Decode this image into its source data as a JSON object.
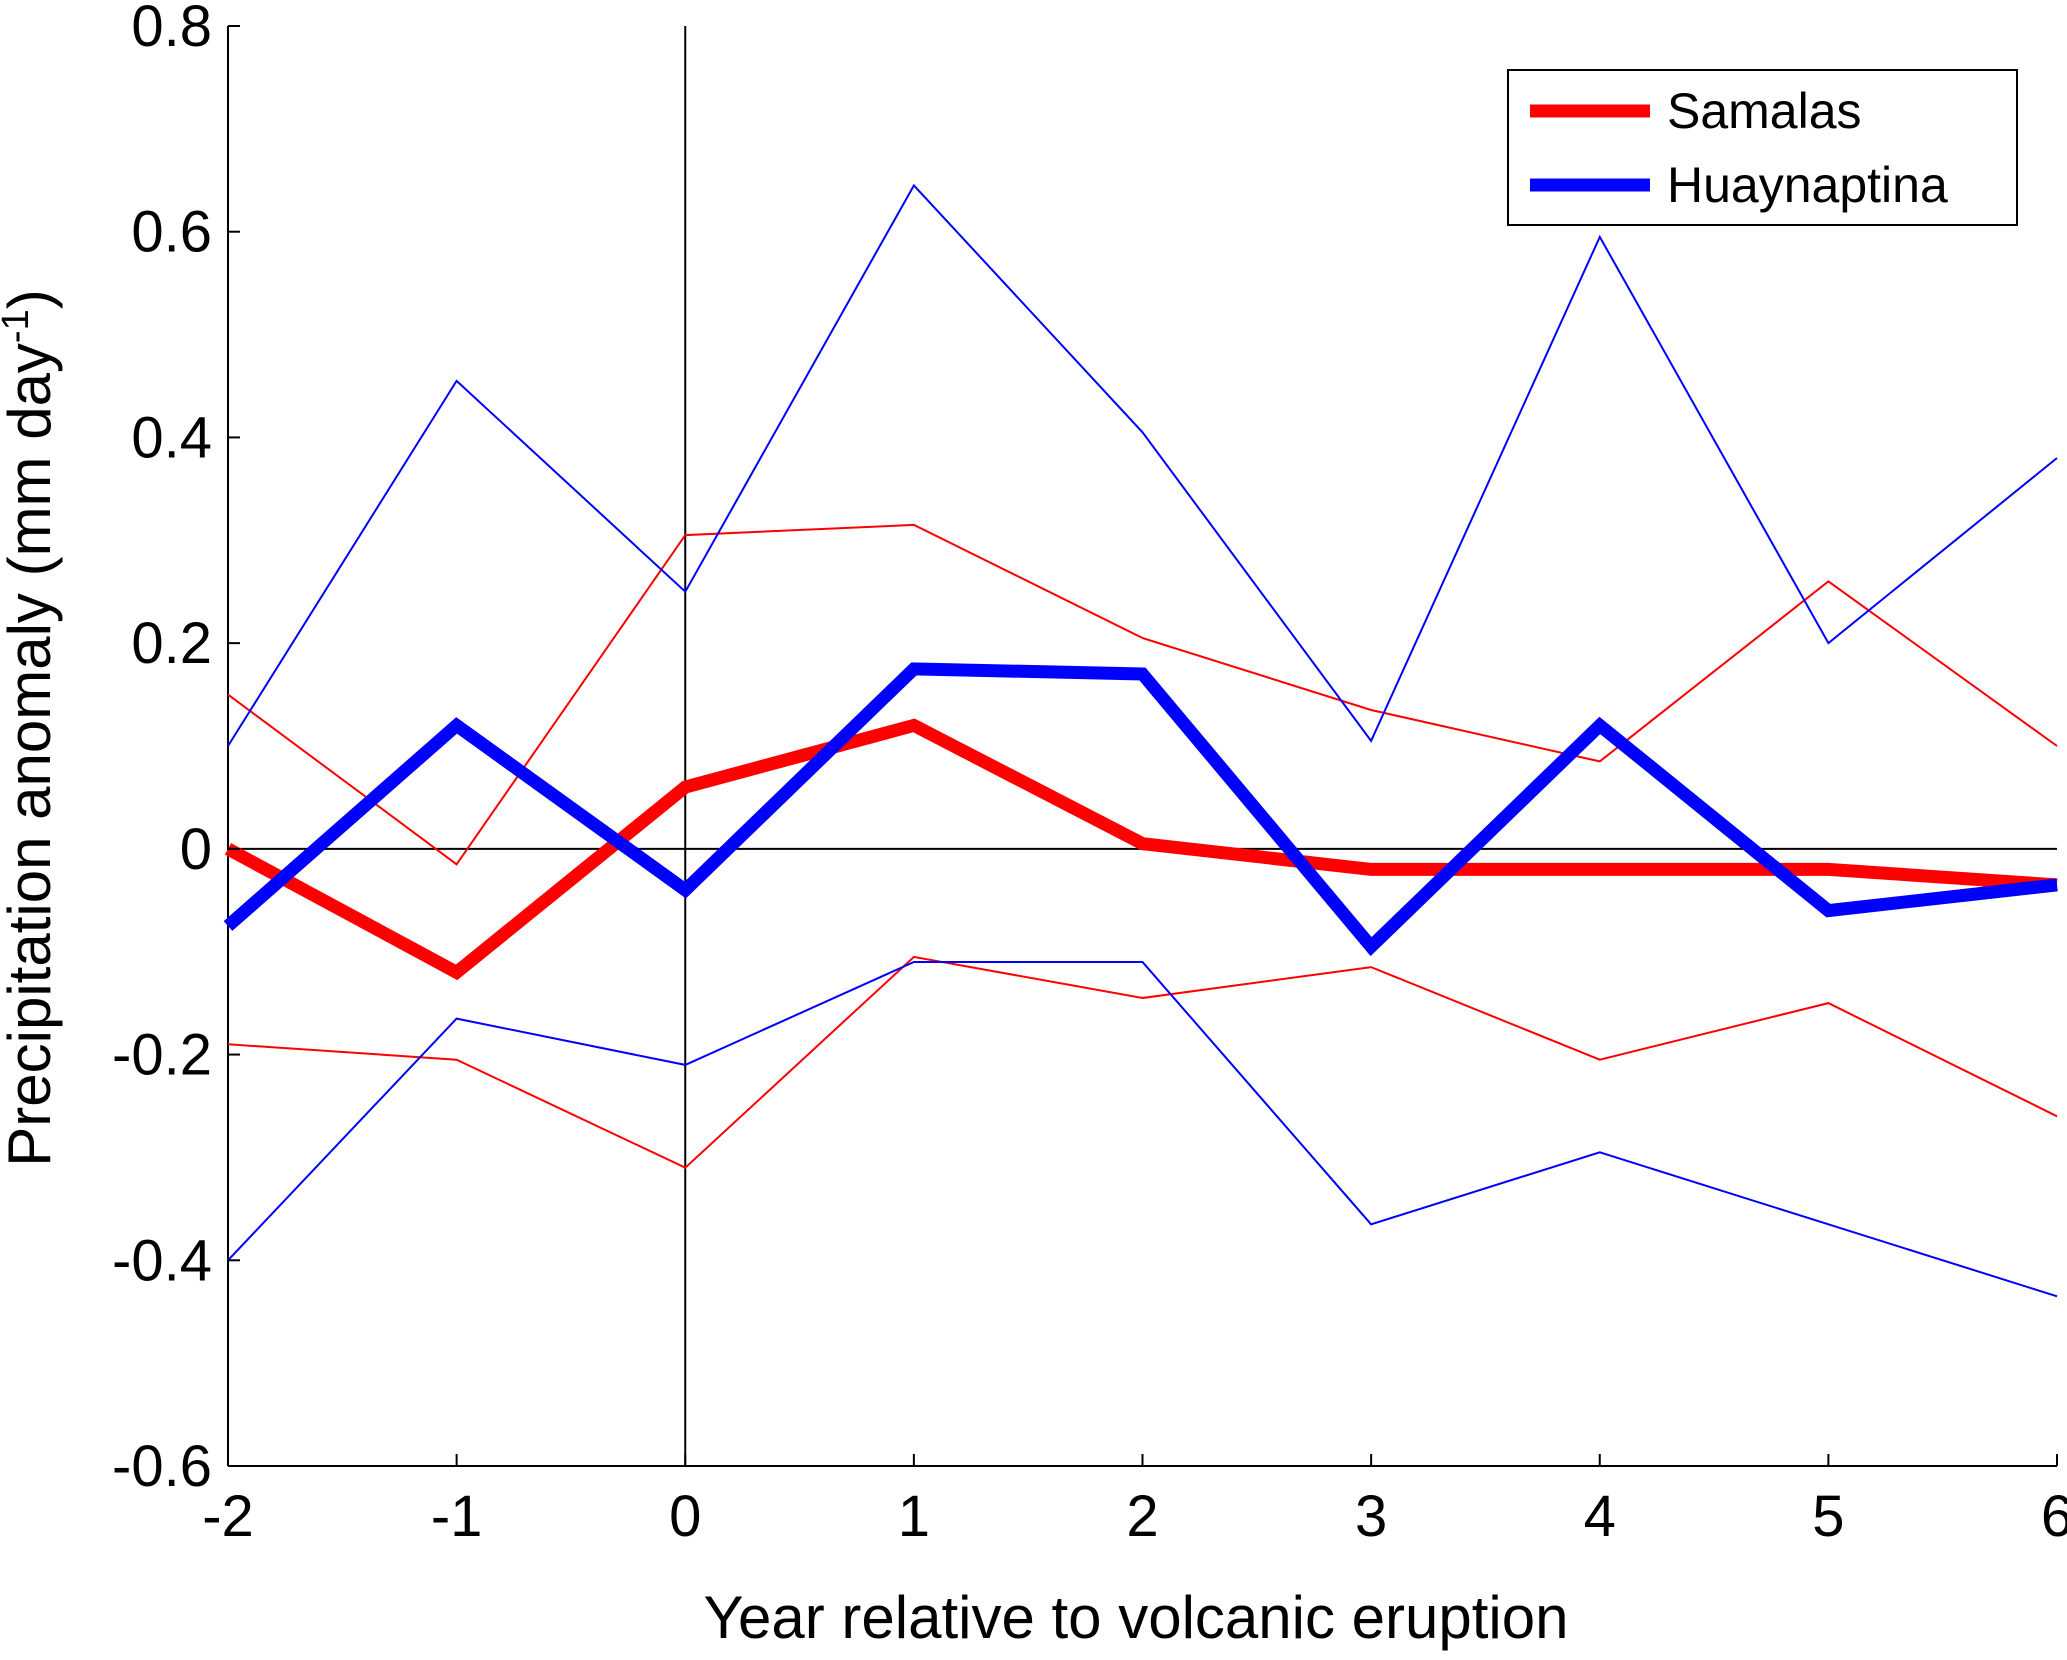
{
  "chart_data": {
    "type": "line",
    "title": "",
    "xlabel": "Year relative to volcanic eruption",
    "ylabel": "Precipitation anomaly (mm day",
    "ylabel_superscript": "-1",
    "ylabel_close": ")",
    "x": [
      -2,
      -1,
      0,
      1,
      2,
      3,
      4,
      5,
      6
    ],
    "xlim": [
      -2,
      6
    ],
    "ylim": [
      -0.6,
      0.8
    ],
    "xticks": [
      -2,
      -1,
      0,
      1,
      2,
      3,
      4,
      5,
      6
    ],
    "yticks": [
      -0.6,
      -0.4,
      -0.2,
      0,
      0.2,
      0.4,
      0.6,
      0.8
    ],
    "xtick_labels": [
      "-2",
      "-1",
      "0",
      "1",
      "2",
      "3",
      "4",
      "5",
      "6"
    ],
    "ytick_labels": [
      "-0.6",
      "-0.4",
      "-0.2",
      "0",
      "0.2",
      "0.4",
      "0.6",
      "0.8"
    ],
    "grid": false,
    "reference_lines": {
      "x": 0,
      "y": 0
    },
    "legend_position": "top-right",
    "series": [
      {
        "name": "Samalas",
        "role": "mean",
        "color": "#ff0000",
        "in_legend": true,
        "values": [
          0.0,
          -0.12,
          0.06,
          0.12,
          0.005,
          -0.02,
          -0.02,
          -0.02,
          -0.035
        ]
      },
      {
        "name": "Huaynaptina",
        "role": "mean",
        "color": "#0000ff",
        "in_legend": true,
        "values": [
          -0.075,
          0.12,
          -0.04,
          0.175,
          0.17,
          -0.095,
          0.12,
          -0.06,
          -0.035
        ]
      },
      {
        "name": "Samalas upper",
        "role": "bound",
        "color": "#ff0000",
        "in_legend": false,
        "values": [
          0.15,
          -0.015,
          0.305,
          0.315,
          0.205,
          0.135,
          0.085,
          0.26,
          0.1
        ]
      },
      {
        "name": "Samalas lower",
        "role": "bound",
        "color": "#ff0000",
        "in_legend": false,
        "values": [
          -0.19,
          -0.205,
          -0.31,
          -0.105,
          -0.145,
          -0.115,
          -0.205,
          -0.15,
          -0.26
        ]
      },
      {
        "name": "Huaynaptina upper",
        "role": "bound",
        "color": "#0000ff",
        "in_legend": false,
        "values": [
          0.1,
          0.455,
          0.25,
          0.645,
          0.405,
          0.105,
          0.595,
          0.2,
          0.38
        ]
      },
      {
        "name": "Huaynaptina lower",
        "role": "bound",
        "color": "#0000ff",
        "in_legend": false,
        "values": [
          -0.4,
          -0.165,
          -0.21,
          -0.11,
          -0.11,
          -0.365,
          -0.295,
          -0.365,
          -0.435
        ]
      }
    ]
  }
}
